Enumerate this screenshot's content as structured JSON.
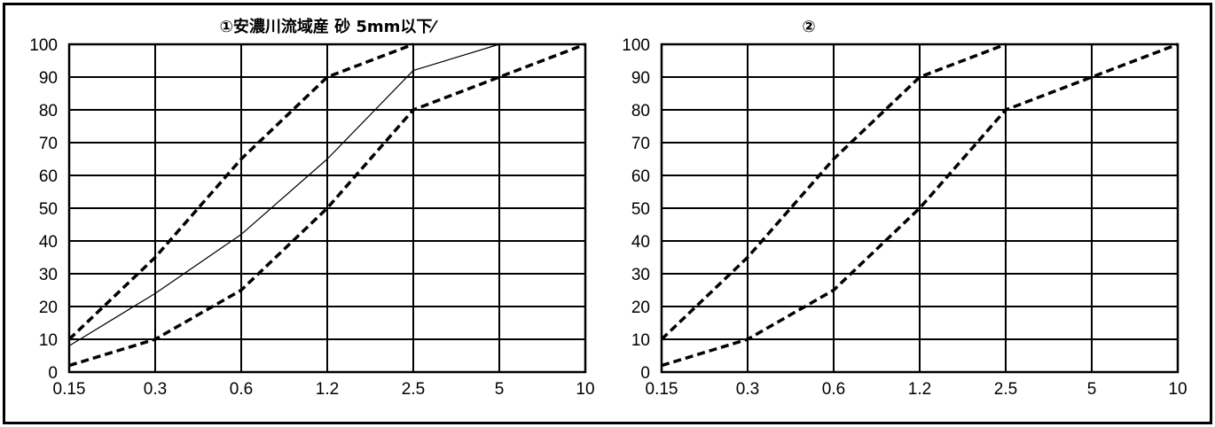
{
  "chart_data": [
    {
      "type": "line",
      "title": "①安濃川流域産 砂 5mm以下⁄",
      "categories": [
        "0.15",
        "0.3",
        "0.6",
        "1.2",
        "2.5",
        "5",
        "10"
      ],
      "ylim": [
        0,
        100
      ],
      "y_ticks": [
        "0",
        "10",
        "20",
        "30",
        "40",
        "50",
        "60",
        "70",
        "80",
        "90",
        "100"
      ],
      "grid": true,
      "series": [
        {
          "style": "dashed",
          "values": [
            10,
            35,
            65,
            90,
            100,
            null,
            null
          ]
        },
        {
          "style": "dashed",
          "values": [
            2,
            10,
            25,
            50,
            80,
            90,
            100
          ]
        },
        {
          "style": "solid",
          "values": [
            8,
            24,
            42,
            65,
            92,
            100,
            null
          ]
        }
      ]
    },
    {
      "type": "line",
      "title": "②",
      "categories": [
        "0.15",
        "0.3",
        "0.6",
        "1.2",
        "2.5",
        "5",
        "10"
      ],
      "ylim": [
        0,
        100
      ],
      "y_ticks": [
        "0",
        "10",
        "20",
        "30",
        "40",
        "50",
        "60",
        "70",
        "80",
        "90",
        "100"
      ],
      "grid": true,
      "series": [
        {
          "style": "dashed",
          "values": [
            10,
            35,
            65,
            90,
            100,
            null,
            null
          ]
        },
        {
          "style": "dashed",
          "values": [
            2,
            10,
            25,
            50,
            80,
            90,
            100
          ]
        }
      ]
    }
  ]
}
